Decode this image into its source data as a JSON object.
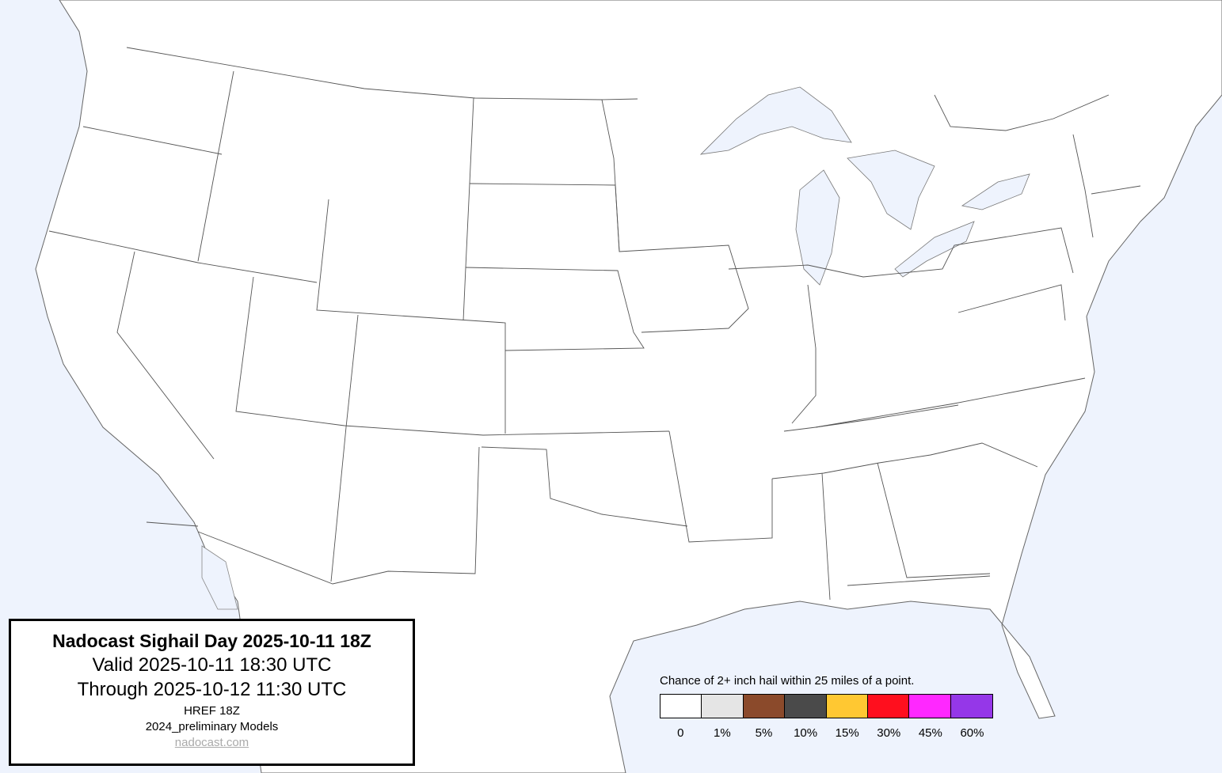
{
  "title_box": {
    "title": "Nadocast Sighail Day 2025-10-11 18Z",
    "valid": "Valid 2025-10-11 18:30 UTC",
    "through": "Through 2025-10-12 11:30 UTC",
    "model": "HREF 18Z",
    "models": "2024_preliminary Models",
    "link": "nadocast.com"
  },
  "legend": {
    "title": "Chance of 2+ inch hail within 25 miles of a point.",
    "bins": [
      {
        "label": "0",
        "color": "#ffffff"
      },
      {
        "label": "1%",
        "color": "#e5e5e5"
      },
      {
        "label": "5%",
        "color": "#8b4a2b"
      },
      {
        "label": "10%",
        "color": "#4a4a4a"
      },
      {
        "label": "15%",
        "color": "#ffc832"
      },
      {
        "label": "30%",
        "color": "#ff0f1e"
      },
      {
        "label": "45%",
        "color": "#ff28ff"
      },
      {
        "label": "60%",
        "color": "#9537e8"
      }
    ]
  },
  "colors": {
    "water": "#eef3fd",
    "land": "#ffffff",
    "borders": "#555555"
  }
}
